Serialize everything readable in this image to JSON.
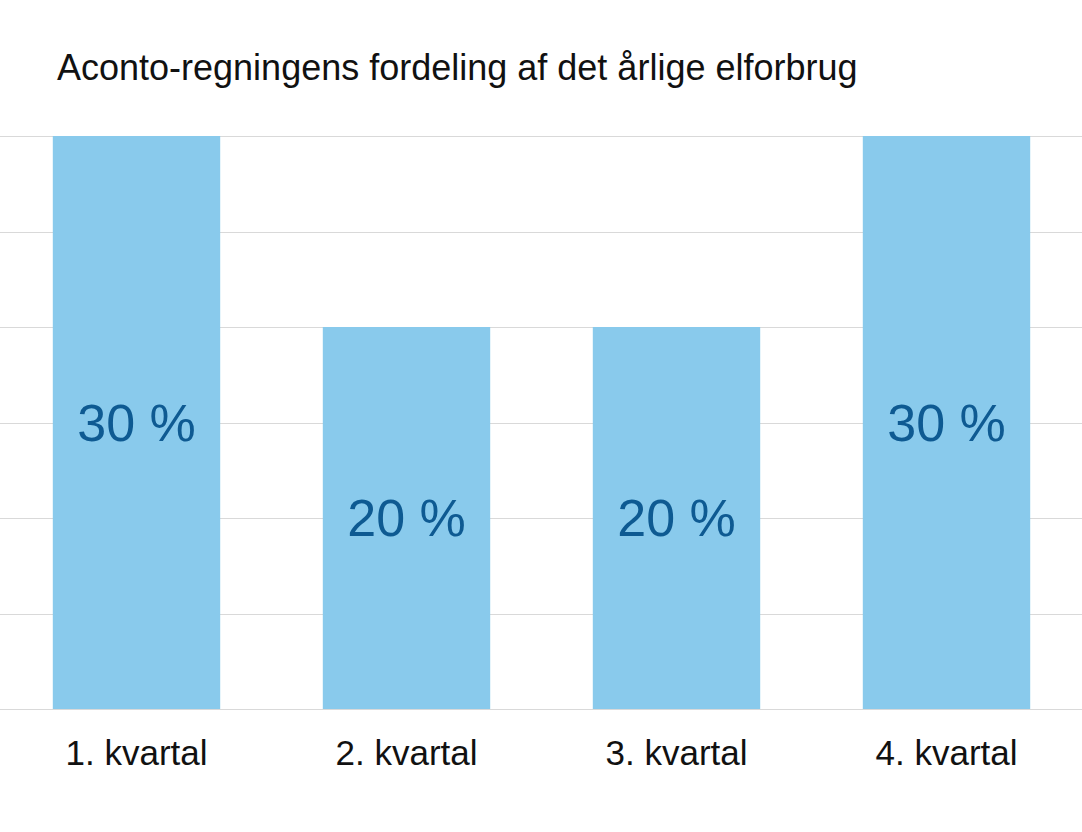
{
  "chart_data": {
    "type": "bar",
    "title": "Aconto-regningens fordeling af det årlige elforbrug",
    "categories": [
      "1. kvartal",
      "2. kvartal",
      "3. kvartal",
      "4. kvartal"
    ],
    "values": [
      30,
      20,
      20,
      30
    ],
    "value_labels": [
      "30 %",
      "20 %",
      "20 %",
      "30 %"
    ],
    "color": "#89caec",
    "ylim": [
      0,
      30
    ],
    "yticks": [
      0,
      5,
      10,
      15,
      20,
      25,
      30
    ],
    "grid": true,
    "data_labels": true,
    "tick_labels": "x"
  }
}
